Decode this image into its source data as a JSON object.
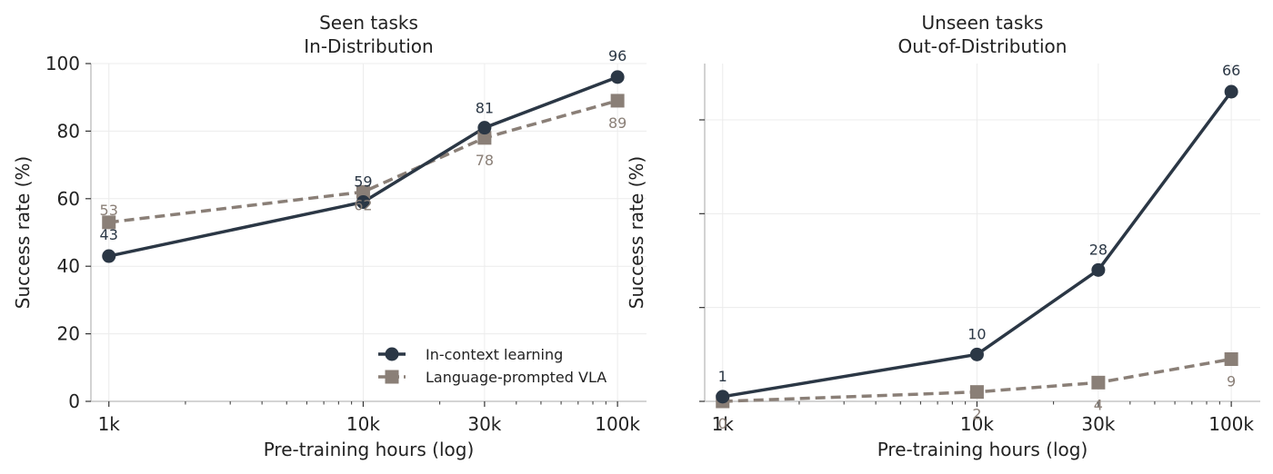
{
  "colors": {
    "icl": "#2b3745",
    "vla": "#8a7f77",
    "grid": "#ececec",
    "spine": "#bbbbbb"
  },
  "chart_data": [
    {
      "type": "line",
      "title": "Seen tasks",
      "subtitle": "In-Distribution",
      "xlabel": "Pre-training hours (log)",
      "ylabel": "Success rate (%)",
      "xscale": "log",
      "xlim": [
        850,
        130000
      ],
      "ylim": [
        0,
        100
      ],
      "x": [
        1000,
        10000,
        30000,
        100000
      ],
      "xtick_labels": [
        "1k",
        "10k",
        "30k",
        "100k"
      ],
      "yticks": [
        0,
        20,
        40,
        60,
        80,
        100
      ],
      "ytick_labels": [
        "0",
        "20",
        "40",
        "60",
        "80",
        "100"
      ],
      "grid": true,
      "legend_position": "bottom-right",
      "series": [
        {
          "name": "In-context learning",
          "values": [
            43,
            59,
            81,
            96
          ],
          "labels": [
            "43",
            "59",
            "81",
            "96"
          ],
          "style": "solid",
          "marker": "circle",
          "color": "#2b3745"
        },
        {
          "name": "Language-prompted VLA",
          "values": [
            53,
            62,
            78,
            89
          ],
          "labels": [
            "53",
            "62",
            "78",
            "89"
          ],
          "style": "dashed",
          "marker": "square",
          "color": "#8a7f77"
        }
      ]
    },
    {
      "type": "line",
      "title": "Unseen tasks",
      "subtitle": "Out-of-Distribution",
      "xlabel": "Pre-training hours (log)",
      "ylabel": "Success rate (%)",
      "xscale": "log",
      "xlim": [
        850,
        130000
      ],
      "ylim": [
        0,
        72
      ],
      "x": [
        1000,
        10000,
        30000,
        100000
      ],
      "xtick_labels": [
        "1k",
        "10k",
        "30k",
        "100k"
      ],
      "grid": true,
      "series": [
        {
          "name": "In-context learning",
          "values": [
            1,
            10,
            28,
            66
          ],
          "labels": [
            "1",
            "10",
            "28",
            "66"
          ],
          "style": "solid",
          "marker": "circle",
          "color": "#2b3745"
        },
        {
          "name": "Language-prompted VLA",
          "values": [
            0,
            2,
            4,
            9
          ],
          "labels": [
            "0",
            "2",
            "4",
            "9"
          ],
          "style": "dashed",
          "marker": "square",
          "color": "#8a7f77"
        }
      ]
    }
  ]
}
